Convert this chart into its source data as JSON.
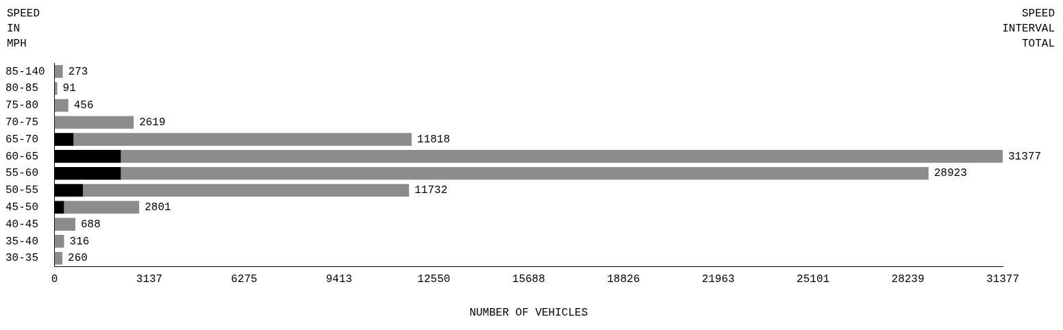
{
  "chart_data": {
    "type": "bar",
    "orientation": "horizontal",
    "stacked": true,
    "ylabel": "SPEED IN MPH",
    "y2label": "SPEED INTERVAL TOTAL",
    "xlabel": "NUMBER OF VEHICLES",
    "categories": [
      "85-140",
      "80-85",
      "75-80",
      "70-75",
      "65-70",
      "60-65",
      "55-60",
      "50-55",
      "45-50",
      "40-45",
      "35-40",
      "30-35"
    ],
    "series": [
      {
        "color": "#000000",
        "values": [
          0,
          0,
          0,
          0,
          628,
          2196,
          2196,
          941,
          314,
          0,
          0,
          0
        ]
      },
      {
        "color": "#8c8c8c",
        "values": [
          273,
          91,
          456,
          2619,
          11190,
          29181,
          26727,
          10791,
          2487,
          688,
          316,
          260
        ]
      }
    ],
    "totals": [
      "273",
      "91",
      "456",
      "2619",
      "11818",
      "31377",
      "28923",
      "11732",
      "2801",
      "688",
      "316",
      "260"
    ],
    "xlim": [
      0,
      31377
    ],
    "xticks": [
      0,
      3137,
      6275,
      9413,
      12550,
      15688,
      18826,
      21963,
      25101,
      28239,
      31377
    ],
    "grid": false,
    "legend": false
  }
}
